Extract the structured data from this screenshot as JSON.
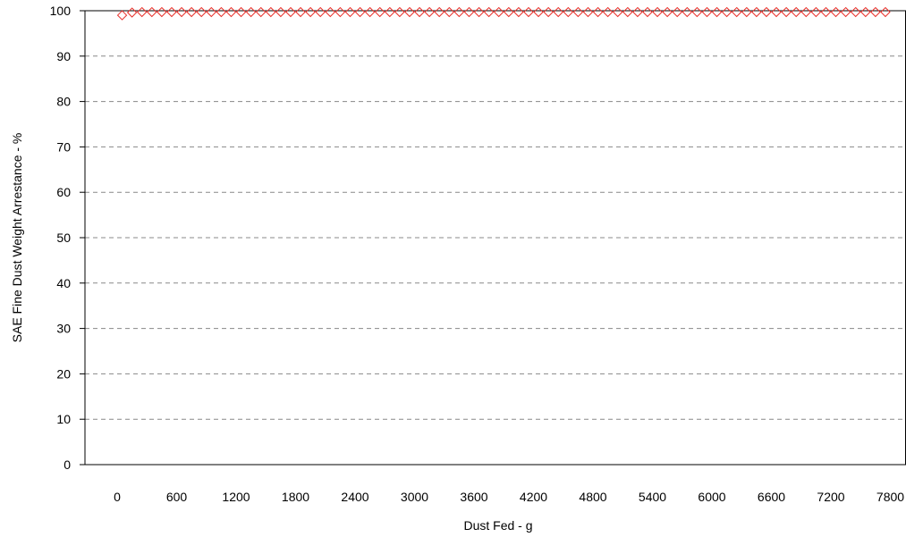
{
  "chart_data": {
    "type": "scatter",
    "title": "",
    "xlabel": "Dust Fed - g",
    "ylabel": "SAE Fine Dust Weight Arrestance - %",
    "ylim": [
      0,
      100
    ],
    "y_ticks": [
      "0",
      "10",
      "20",
      "30",
      "40",
      "50",
      "60",
      "70",
      "80",
      "90",
      "100"
    ],
    "x_ticks": [
      "0",
      "600",
      "1200",
      "1800",
      "2400",
      "3000",
      "3600",
      "4200",
      "4800",
      "5400",
      "6000",
      "6600",
      "7200",
      "7800"
    ],
    "grid": "horizontal-dashed",
    "legend": "none",
    "marker": "open-diamond",
    "marker_color": "#e8302a",
    "series": [
      {
        "x": [
          50,
          150,
          250,
          350,
          450,
          550,
          650,
          750,
          850,
          950,
          1050,
          1150,
          1250,
          1350,
          1450,
          1550,
          1650,
          1750,
          1850,
          1950,
          2050,
          2150,
          2250,
          2350,
          2450,
          2550,
          2650,
          2750,
          2850,
          2950,
          3050,
          3150,
          3250,
          3350,
          3450,
          3550,
          3650,
          3750,
          3850,
          3950,
          4050,
          4150,
          4250,
          4350,
          4450,
          4550,
          4650,
          4750,
          4850,
          4950,
          5050,
          5150,
          5250,
          5350,
          5450,
          5550,
          5650,
          5750,
          5850,
          5950,
          6050,
          6150,
          6250,
          6350,
          6450,
          6550,
          6650,
          6750,
          6850,
          6950,
          7050,
          7150,
          7250,
          7350,
          7450,
          7550,
          7650,
          7750
        ],
        "values": [
          99.0,
          99.6,
          99.7,
          99.7,
          99.7,
          99.7,
          99.7,
          99.7,
          99.7,
          99.7,
          99.7,
          99.7,
          99.7,
          99.7,
          99.7,
          99.7,
          99.7,
          99.7,
          99.7,
          99.7,
          99.7,
          99.7,
          99.7,
          99.7,
          99.7,
          99.7,
          99.7,
          99.7,
          99.7,
          99.7,
          99.7,
          99.7,
          99.7,
          99.7,
          99.7,
          99.7,
          99.7,
          99.7,
          99.7,
          99.7,
          99.7,
          99.7,
          99.7,
          99.7,
          99.7,
          99.7,
          99.7,
          99.7,
          99.7,
          99.7,
          99.7,
          99.7,
          99.7,
          99.7,
          99.7,
          99.7,
          99.7,
          99.7,
          99.7,
          99.7,
          99.7,
          99.7,
          99.7,
          99.7,
          99.7,
          99.7,
          99.7,
          99.7,
          99.7,
          99.7,
          99.7,
          99.7,
          99.7,
          99.7,
          99.7,
          99.7,
          99.7,
          99.7
        ]
      }
    ]
  }
}
